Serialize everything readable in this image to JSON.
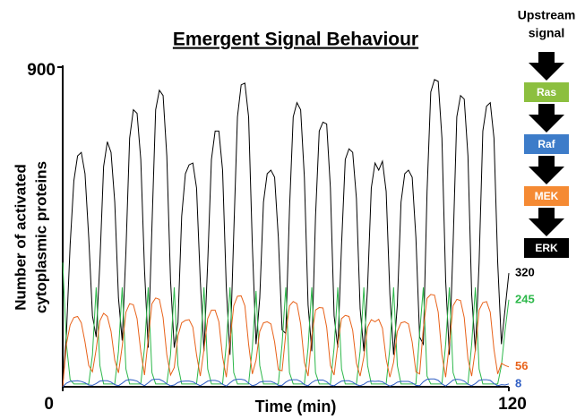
{
  "chart_data": {
    "type": "line",
    "title": "Emergent Signal Behaviour",
    "xlabel": "Time (min)",
    "ylabel": [
      "Number of activated",
      "cytoplasmic proteins"
    ],
    "xlim": [
      0,
      120
    ],
    "xticks": [
      0,
      120
    ],
    "ylim": [
      0,
      900
    ],
    "yticks": [
      900
    ],
    "x": [
      0,
      1,
      2,
      3,
      4,
      5,
      6,
      7,
      8,
      9,
      10,
      11,
      12,
      13,
      14,
      15,
      16,
      17,
      18,
      19,
      20,
      21,
      22,
      23,
      24,
      25,
      26,
      27,
      28,
      29,
      30,
      31,
      32,
      33,
      34,
      35,
      36,
      37,
      38,
      39,
      40,
      41,
      42,
      43,
      44,
      45,
      46,
      47,
      48,
      49,
      50,
      51,
      52,
      53,
      54,
      55,
      56,
      57,
      58,
      59,
      60,
      61,
      62,
      63,
      64,
      65,
      66,
      67,
      68,
      69,
      70,
      71,
      72,
      73,
      74,
      75,
      76,
      77,
      78,
      79,
      80,
      81,
      82,
      83,
      84,
      85,
      86,
      87,
      88,
      89,
      90,
      91,
      92,
      93,
      94,
      95,
      96,
      97,
      98,
      99,
      100,
      101,
      102,
      103,
      104,
      105,
      106,
      107,
      108,
      109,
      110,
      111,
      112,
      113,
      114,
      115,
      116,
      117,
      118,
      119,
      120
    ],
    "series": [
      {
        "color": "#000000",
        "values": [
          0,
          150,
          400,
          580,
          650,
          660,
          600,
          420,
          200,
          140,
          350,
          620,
          690,
          660,
          520,
          250,
          130,
          380,
          700,
          780,
          770,
          640,
          330,
          110,
          450,
          780,
          835,
          820,
          650,
          300,
          110,
          180,
          480,
          600,
          625,
          630,
          560,
          300,
          100,
          350,
          640,
          720,
          720,
          610,
          280,
          90,
          430,
          760,
          850,
          855,
          760,
          400,
          120,
          250,
          520,
          600,
          610,
          590,
          420,
          160,
          150,
          500,
          760,
          800,
          780,
          590,
          230,
          100,
          480,
          720,
          745,
          740,
          560,
          200,
          110,
          400,
          640,
          670,
          660,
          530,
          220,
          100,
          280,
          560,
          630,
          610,
          635,
          550,
          260,
          90,
          230,
          520,
          600,
          610,
          590,
          420,
          140,
          120,
          550,
          830,
          865,
          860,
          700,
          300,
          90,
          400,
          760,
          820,
          810,
          650,
          260,
          100,
          350,
          720,
          790,
          800,
          700,
          350,
          120,
          220,
          320
        ]
      },
      {
        "color": "#2db84a",
        "values": [
          350,
          120,
          20,
          8,
          8,
          8,
          8,
          8,
          90,
          280,
          60,
          8,
          8,
          8,
          8,
          100,
          280,
          50,
          8,
          8,
          8,
          8,
          110,
          280,
          40,
          8,
          8,
          8,
          8,
          90,
          280,
          60,
          8,
          8,
          8,
          8,
          8,
          100,
          280,
          50,
          8,
          8,
          8,
          8,
          120,
          280,
          40,
          8,
          8,
          8,
          8,
          110,
          270,
          60,
          8,
          8,
          8,
          8,
          8,
          120,
          280,
          40,
          8,
          8,
          8,
          8,
          110,
          280,
          40,
          8,
          8,
          8,
          8,
          110,
          280,
          50,
          8,
          8,
          8,
          8,
          100,
          280,
          60,
          8,
          8,
          8,
          8,
          8,
          110,
          280,
          60,
          8,
          8,
          8,
          8,
          8,
          150,
          280,
          30,
          8,
          8,
          8,
          8,
          120,
          280,
          40,
          8,
          8,
          8,
          8,
          120,
          280,
          50,
          8,
          8,
          8,
          8,
          8,
          60,
          160,
          245
        ]
      },
      {
        "color": "#e8621a",
        "values": [
          0,
          120,
          174,
          195,
          198,
          180,
          126,
          60,
          42,
          105,
          186,
          207,
          198,
          156,
          75,
          39,
          114,
          210,
          234,
          231,
          192,
          99,
          33,
          135,
          234,
          250,
          246,
          195,
          90,
          33,
          54,
          144,
          180,
          187,
          189,
          168,
          90,
          30,
          105,
          192,
          216,
          216,
          183,
          84,
          27,
          129,
          228,
          255,
          256,
          228,
          120,
          36,
          75,
          156,
          180,
          183,
          177,
          126,
          48,
          45,
          150,
          228,
          240,
          234,
          177,
          69,
          30,
          144,
          216,
          223,
          222,
          168,
          60,
          33,
          120,
          192,
          201,
          198,
          159,
          66,
          30,
          84,
          168,
          189,
          183,
          190,
          165,
          78,
          27,
          69,
          156,
          180,
          183,
          177,
          126,
          42,
          36,
          165,
          249,
          260,
          258,
          210,
          90,
          27,
          120,
          228,
          246,
          243,
          195,
          78,
          30,
          105,
          216,
          237,
          240,
          210,
          105,
          36,
          66,
          60,
          56
        ]
      },
      {
        "color": "#2f5ec4",
        "values": [
          0,
          10,
          15,
          16,
          17,
          15,
          11,
          5,
          4,
          9,
          16,
          17,
          17,
          13,
          6,
          3,
          10,
          18,
          20,
          19,
          16,
          8,
          3,
          11,
          20,
          21,
          21,
          16,
          8,
          3,
          5,
          12,
          15,
          16,
          16,
          14,
          8,
          3,
          9,
          16,
          18,
          18,
          15,
          7,
          2,
          11,
          19,
          21,
          21,
          19,
          10,
          3,
          6,
          13,
          15,
          15,
          15,
          11,
          4,
          4,
          13,
          19,
          20,
          20,
          15,
          6,
          3,
          12,
          18,
          19,
          19,
          14,
          5,
          3,
          10,
          16,
          17,
          17,
          13,
          6,
          3,
          7,
          14,
          16,
          15,
          16,
          14,
          7,
          2,
          6,
          13,
          15,
          15,
          15,
          11,
          4,
          3,
          14,
          21,
          22,
          22,
          18,
          8,
          2,
          10,
          19,
          21,
          20,
          16,
          7,
          3,
          9,
          18,
          20,
          20,
          18,
          9,
          3,
          6,
          5,
          8
        ]
      }
    ]
  },
  "pathway": {
    "heading": [
      "Upstream",
      "signal"
    ],
    "nodes": [
      {
        "label": "Ras",
        "color": "#8cbf3f"
      },
      {
        "label": "Raf",
        "color": "#3d7cc9"
      },
      {
        "label": "MEK",
        "color": "#f58a33"
      },
      {
        "label": "ERK",
        "color": "#000000"
      }
    ]
  }
}
